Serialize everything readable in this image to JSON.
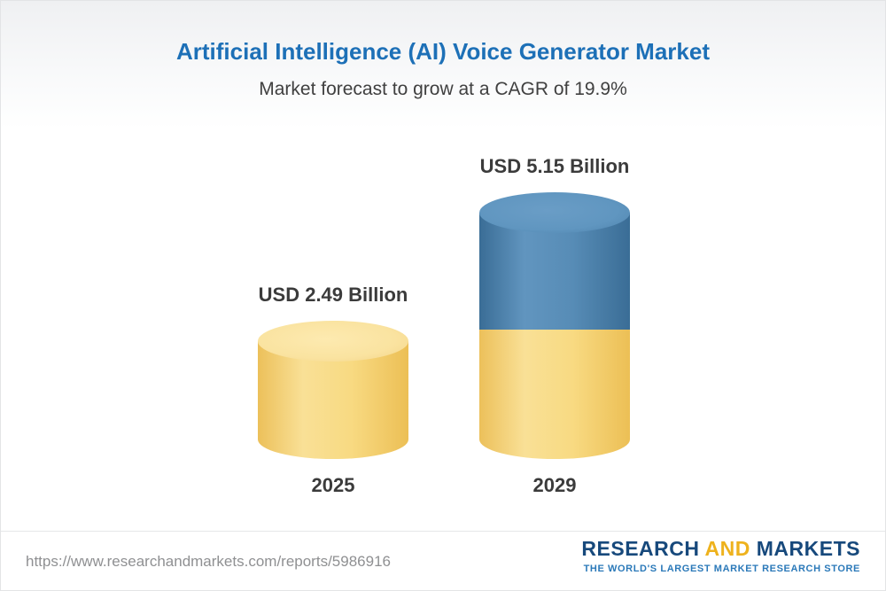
{
  "header": {
    "title": "Artificial Intelligence (AI) Voice Generator Market",
    "subtitle": "Market forecast to grow at a CAGR of 19.9%"
  },
  "chart_data": {
    "type": "bar",
    "title": "Artificial Intelligence (AI) Voice Generator Market",
    "subtitle": "Market forecast to grow at a CAGR of 19.9%",
    "categories": [
      "2025",
      "2029"
    ],
    "values": [
      2.49,
      5.15
    ],
    "unit": "USD Billion",
    "cagr": "19.9%",
    "ylim": [
      0,
      5.5
    ],
    "grid": false,
    "legend": "none",
    "bars": [
      {
        "category": "2025",
        "value": 2.49,
        "value_label": "USD 2.49 Billion",
        "segments": [
          {
            "name": "base",
            "color": "#f6d478"
          }
        ]
      },
      {
        "category": "2029",
        "value": 5.15,
        "value_label": "USD 5.15 Billion",
        "segments": [
          {
            "name": "base",
            "color": "#f6d478"
          },
          {
            "name": "growth",
            "color": "#4a7fa8"
          }
        ]
      }
    ]
  },
  "footer": {
    "url": "https://www.researchandmarkets.com/reports/5986916",
    "logo": {
      "research": "RESEARCH",
      "and": "AND",
      "markets": "MARKETS",
      "tagline": "THE WORLD'S LARGEST MARKET RESEARCH STORE"
    }
  },
  "colors": {
    "title": "#1d70b7",
    "subtitle": "#404040",
    "label_text": "#3b3b3b",
    "bar_yellow": "#f6d478",
    "bar_blue": "#4a7fa8",
    "logo_blue": "#17497c",
    "logo_gold": "#eeb21d",
    "tagline_blue": "#2b79b9",
    "url_gray": "#8f9092"
  }
}
